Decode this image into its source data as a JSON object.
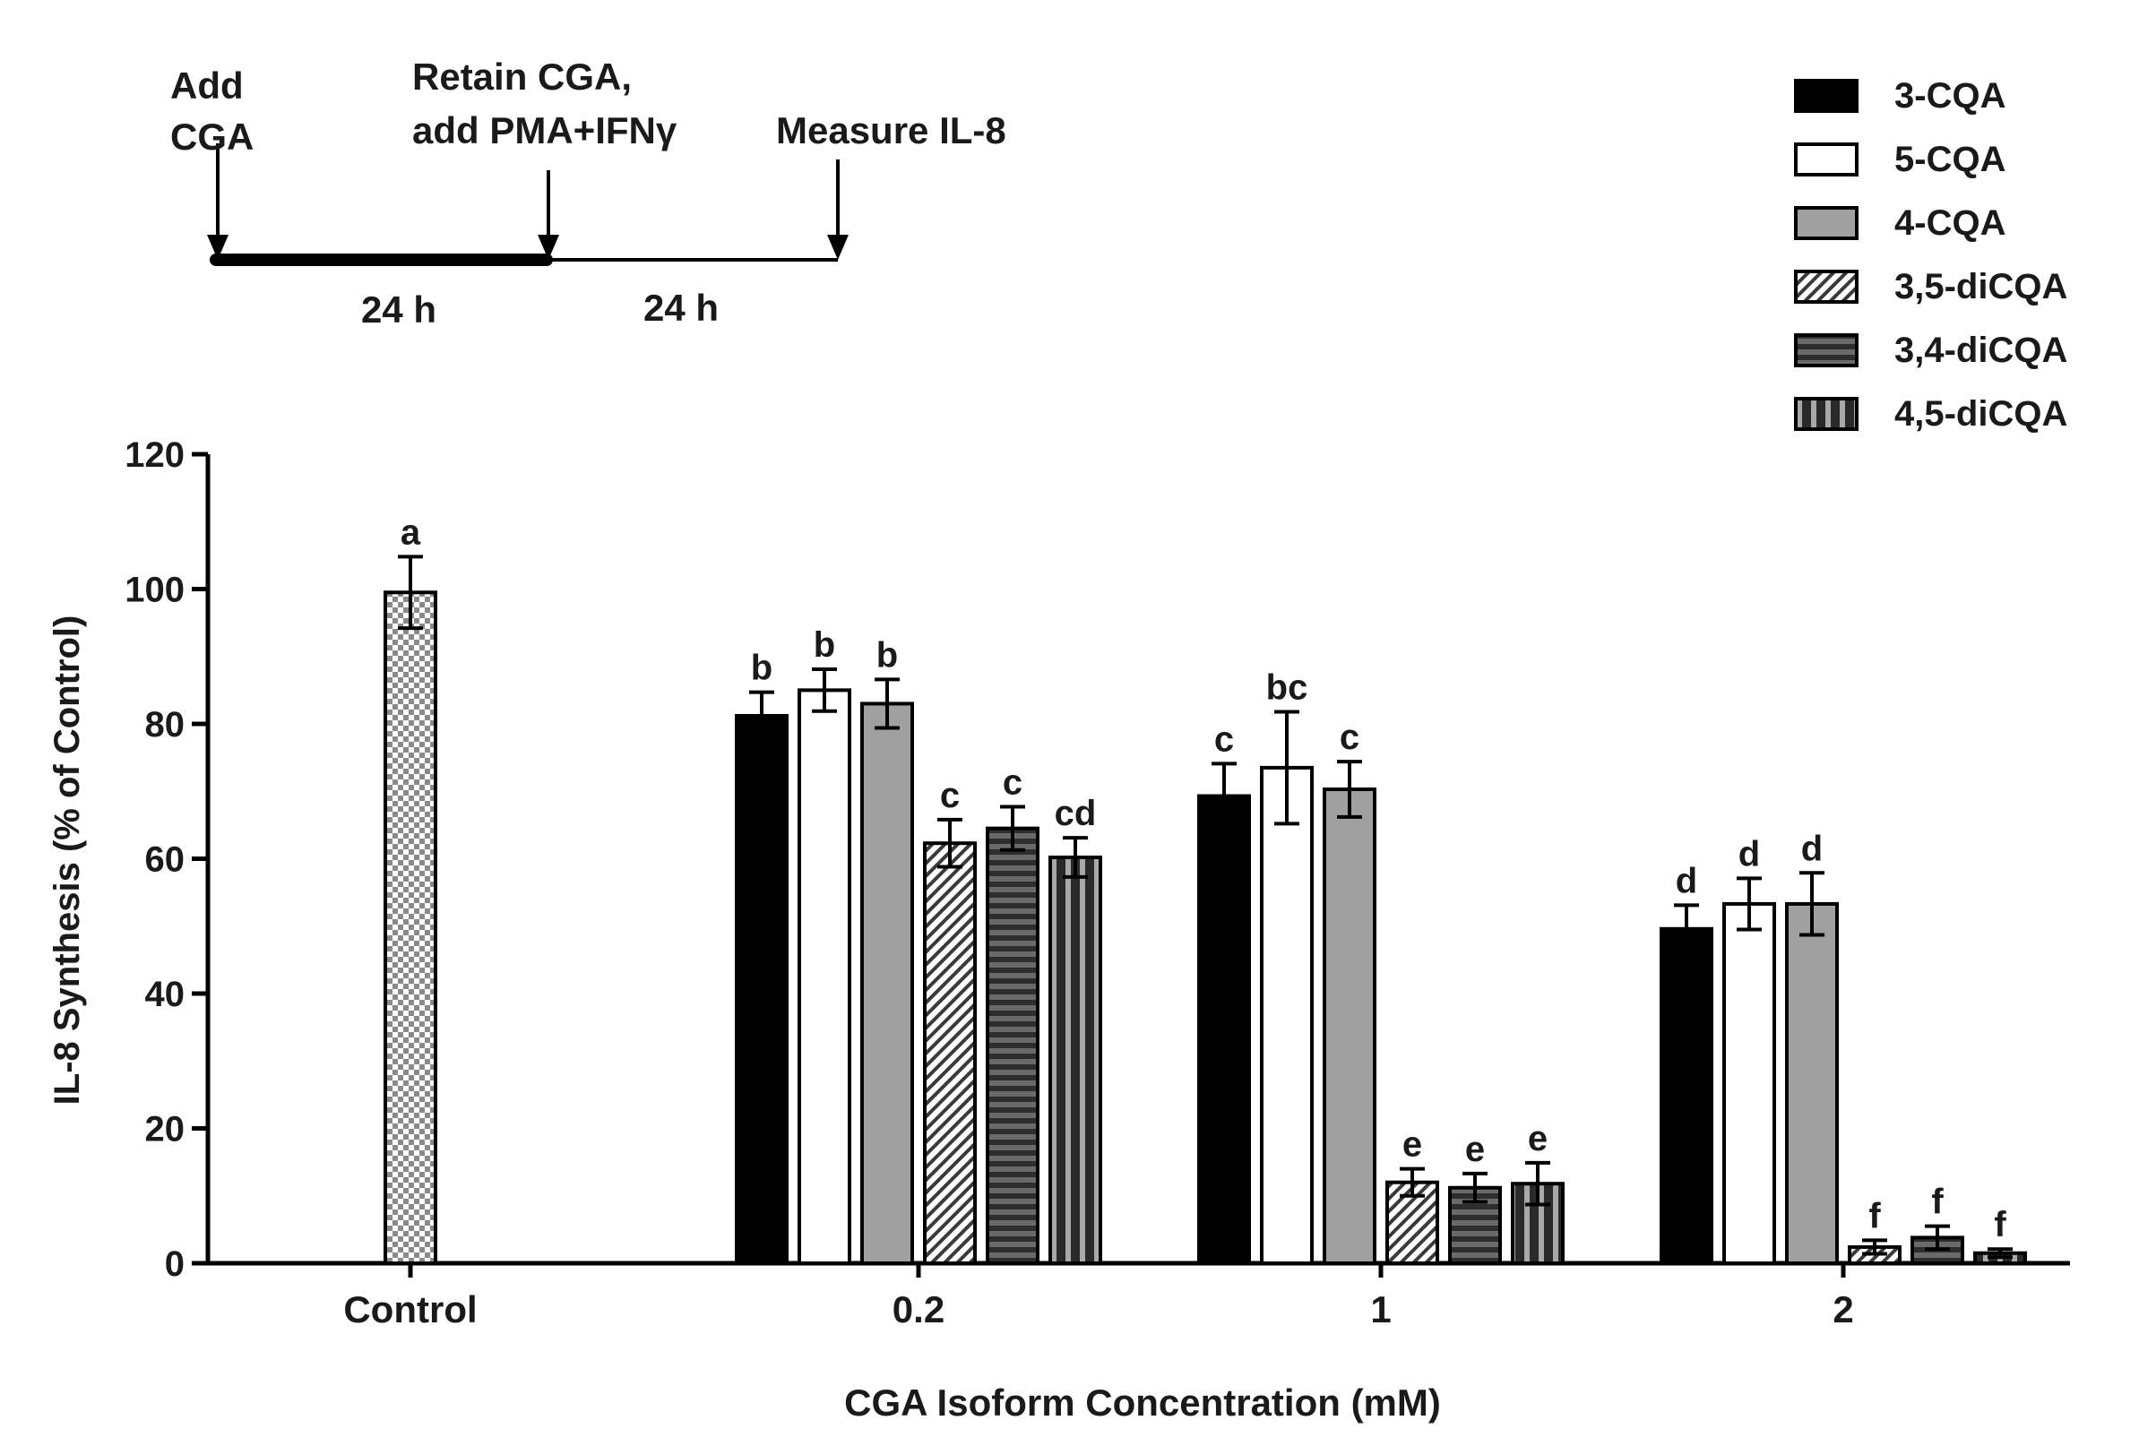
{
  "timeline": {
    "step1": [
      "Add",
      "CGA"
    ],
    "step2": [
      "Retain CGA,",
      "add PMA+IFNγ"
    ],
    "step3": "Measure IL-8",
    "period1": "24 h",
    "period2": "24 h"
  },
  "chart_data": {
    "type": "bar",
    "title": "",
    "xlabel": "CGA Isoform Concentration (mM)",
    "ylabel": "IL-8 Synthesis (% of Control)",
    "ylim": [
      0,
      120
    ],
    "yticks": [
      0,
      20,
      40,
      60,
      80,
      100,
      120
    ],
    "legend_position": "top-right",
    "categories": [
      "Control",
      "0.2",
      "1",
      "2"
    ],
    "control": {
      "name": "Control",
      "value": 99.5,
      "error": 5.3,
      "letter": "a"
    },
    "series": [
      {
        "name": "3-CQA",
        "values": [
          null,
          81.2,
          69.3,
          49.6
        ],
        "errors": [
          null,
          3.5,
          4.8,
          3.5
        ],
        "letters": [
          null,
          "b",
          "c",
          "d"
        ]
      },
      {
        "name": "5-CQA",
        "values": [
          null,
          85.0,
          73.5,
          53.3
        ],
        "errors": [
          null,
          3.1,
          8.3,
          3.8
        ],
        "letters": [
          null,
          "b",
          "bc",
          "d"
        ]
      },
      {
        "name": "4-CQA",
        "values": [
          null,
          83.0,
          70.3,
          53.3
        ],
        "errors": [
          null,
          3.6,
          4.1,
          4.6
        ],
        "letters": [
          null,
          "b",
          "c",
          "d"
        ]
      },
      {
        "name": "3,5-diCQA",
        "values": [
          null,
          62.3,
          12.0,
          2.4
        ],
        "errors": [
          null,
          3.5,
          2.0,
          1.0
        ],
        "letters": [
          null,
          "c",
          "e",
          "f"
        ]
      },
      {
        "name": "3,4-diCQA",
        "values": [
          null,
          64.5,
          11.2,
          3.8
        ],
        "errors": [
          null,
          3.2,
          2.1,
          1.7
        ],
        "letters": [
          null,
          "c",
          "e",
          "f"
        ]
      },
      {
        "name": "4,5-diCQA",
        "values": [
          null,
          60.2,
          11.8,
          1.5
        ],
        "errors": [
          null,
          2.9,
          3.1,
          0.6
        ],
        "letters": [
          null,
          "cd",
          "e",
          "f"
        ]
      }
    ]
  }
}
